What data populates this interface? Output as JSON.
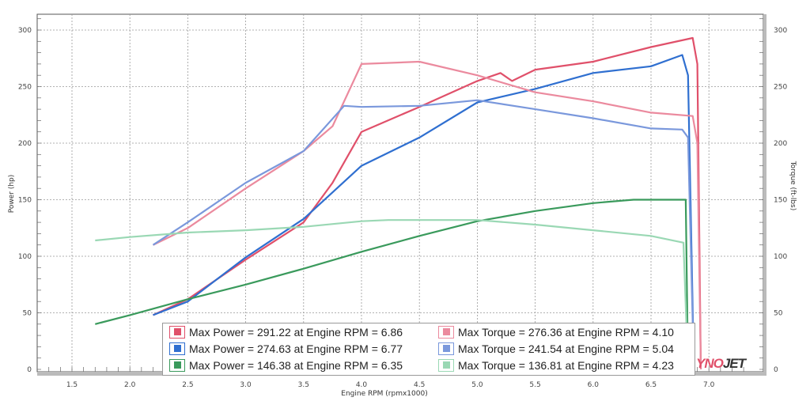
{
  "chart_data": {
    "type": "line",
    "title": "",
    "xlabel": "Engine RPM (rpmx1000)",
    "ylabel": "Power (hp)",
    "y2label": "Torque (ft-lbs)",
    "xlim": [
      1.2,
      7.47
    ],
    "ylim": [
      0,
      300
    ],
    "y2lim": [
      0,
      300
    ],
    "x_ticks": [
      "1.5",
      "2.0",
      "2.5",
      "3.0",
      "3.5",
      "4.0",
      "4.5",
      "5.0",
      "5.5",
      "6.0",
      "6.5",
      "7.0"
    ],
    "y_ticks": [
      "0",
      "50",
      "100",
      "150",
      "200",
      "250",
      "300"
    ],
    "y2_ticks": [
      "0",
      "50",
      "100",
      "150",
      "200",
      "250",
      "300"
    ],
    "grid": true,
    "legend_position": "bottom-center",
    "series": [
      {
        "name": "power-red",
        "axis": "left",
        "color": "#e0506a",
        "x": [
          2.2,
          2.5,
          3.0,
          3.5,
          3.75,
          4.0,
          4.5,
          5.0,
          5.2,
          5.3,
          5.5,
          6.0,
          6.5,
          6.86,
          6.9,
          6.93
        ],
        "y": [
          48,
          62,
          97,
          130,
          165,
          210,
          232,
          255,
          262,
          255,
          265,
          272,
          285,
          293,
          270,
          0
        ]
      },
      {
        "name": "power-blue",
        "axis": "left",
        "color": "#2f6fd0",
        "x": [
          2.2,
          2.5,
          3.0,
          3.5,
          4.0,
          4.5,
          5.0,
          5.5,
          6.0,
          6.5,
          6.77,
          6.82,
          6.87
        ],
        "y": [
          48,
          60,
          99,
          133,
          180,
          205,
          236,
          248,
          262,
          268,
          278,
          260,
          0
        ]
      },
      {
        "name": "power-green",
        "axis": "left",
        "color": "#3a9a5c",
        "x": [
          1.7,
          2.0,
          2.5,
          3.0,
          3.5,
          4.0,
          4.5,
          5.0,
          5.5,
          6.0,
          6.35,
          6.8,
          6.82
        ],
        "y": [
          40,
          48,
          62,
          75,
          89,
          104,
          118,
          131,
          140,
          147,
          150,
          150,
          0
        ]
      },
      {
        "name": "torque-red",
        "axis": "right",
        "color": "#eb8a9e",
        "x": [
          2.2,
          2.5,
          3.0,
          3.5,
          3.75,
          4.0,
          4.5,
          5.0,
          5.5,
          6.0,
          6.5,
          6.86,
          6.9,
          6.93
        ],
        "y": [
          110,
          125,
          160,
          193,
          215,
          270,
          272,
          260,
          245,
          237,
          227,
          224,
          200,
          0
        ]
      },
      {
        "name": "torque-blue",
        "axis": "right",
        "color": "#7a98dc",
        "x": [
          2.2,
          2.5,
          3.0,
          3.5,
          3.85,
          4.0,
          4.5,
          5.0,
          5.5,
          6.0,
          6.5,
          6.77,
          6.82,
          6.87
        ],
        "y": [
          110,
          130,
          165,
          193,
          233,
          232,
          233,
          238,
          230,
          222,
          213,
          212,
          205,
          0
        ]
      },
      {
        "name": "torque-green",
        "axis": "right",
        "color": "#9ad8b4",
        "x": [
          1.7,
          2.0,
          2.5,
          3.0,
          3.5,
          4.0,
          4.23,
          5.0,
          5.5,
          6.0,
          6.5,
          6.78,
          6.82
        ],
        "y": [
          114,
          117,
          121,
          123,
          126,
          131,
          132,
          132,
          128,
          123,
          118,
          112,
          0
        ]
      }
    ],
    "legend": [
      {
        "label": "Max Power = 291.22 at Engine RPM = 6.86",
        "color": "#e0506a"
      },
      {
        "label": "Max Torque = 276.36 at Engine RPM = 4.10",
        "color": "#eb8a9e"
      },
      {
        "label": "Max Power = 274.63 at Engine RPM = 6.77",
        "color": "#2f6fd0"
      },
      {
        "label": "Max Torque = 241.54 at Engine RPM = 5.04",
        "color": "#7a98dc"
      },
      {
        "label": "Max Power = 146.38 at Engine RPM = 6.35",
        "color": "#3a9a5c"
      },
      {
        "label": "Max Torque = 136.81 at Engine RPM = 4.23",
        "color": "#9ad8b4"
      }
    ],
    "logo_text": "DYNOJET"
  }
}
